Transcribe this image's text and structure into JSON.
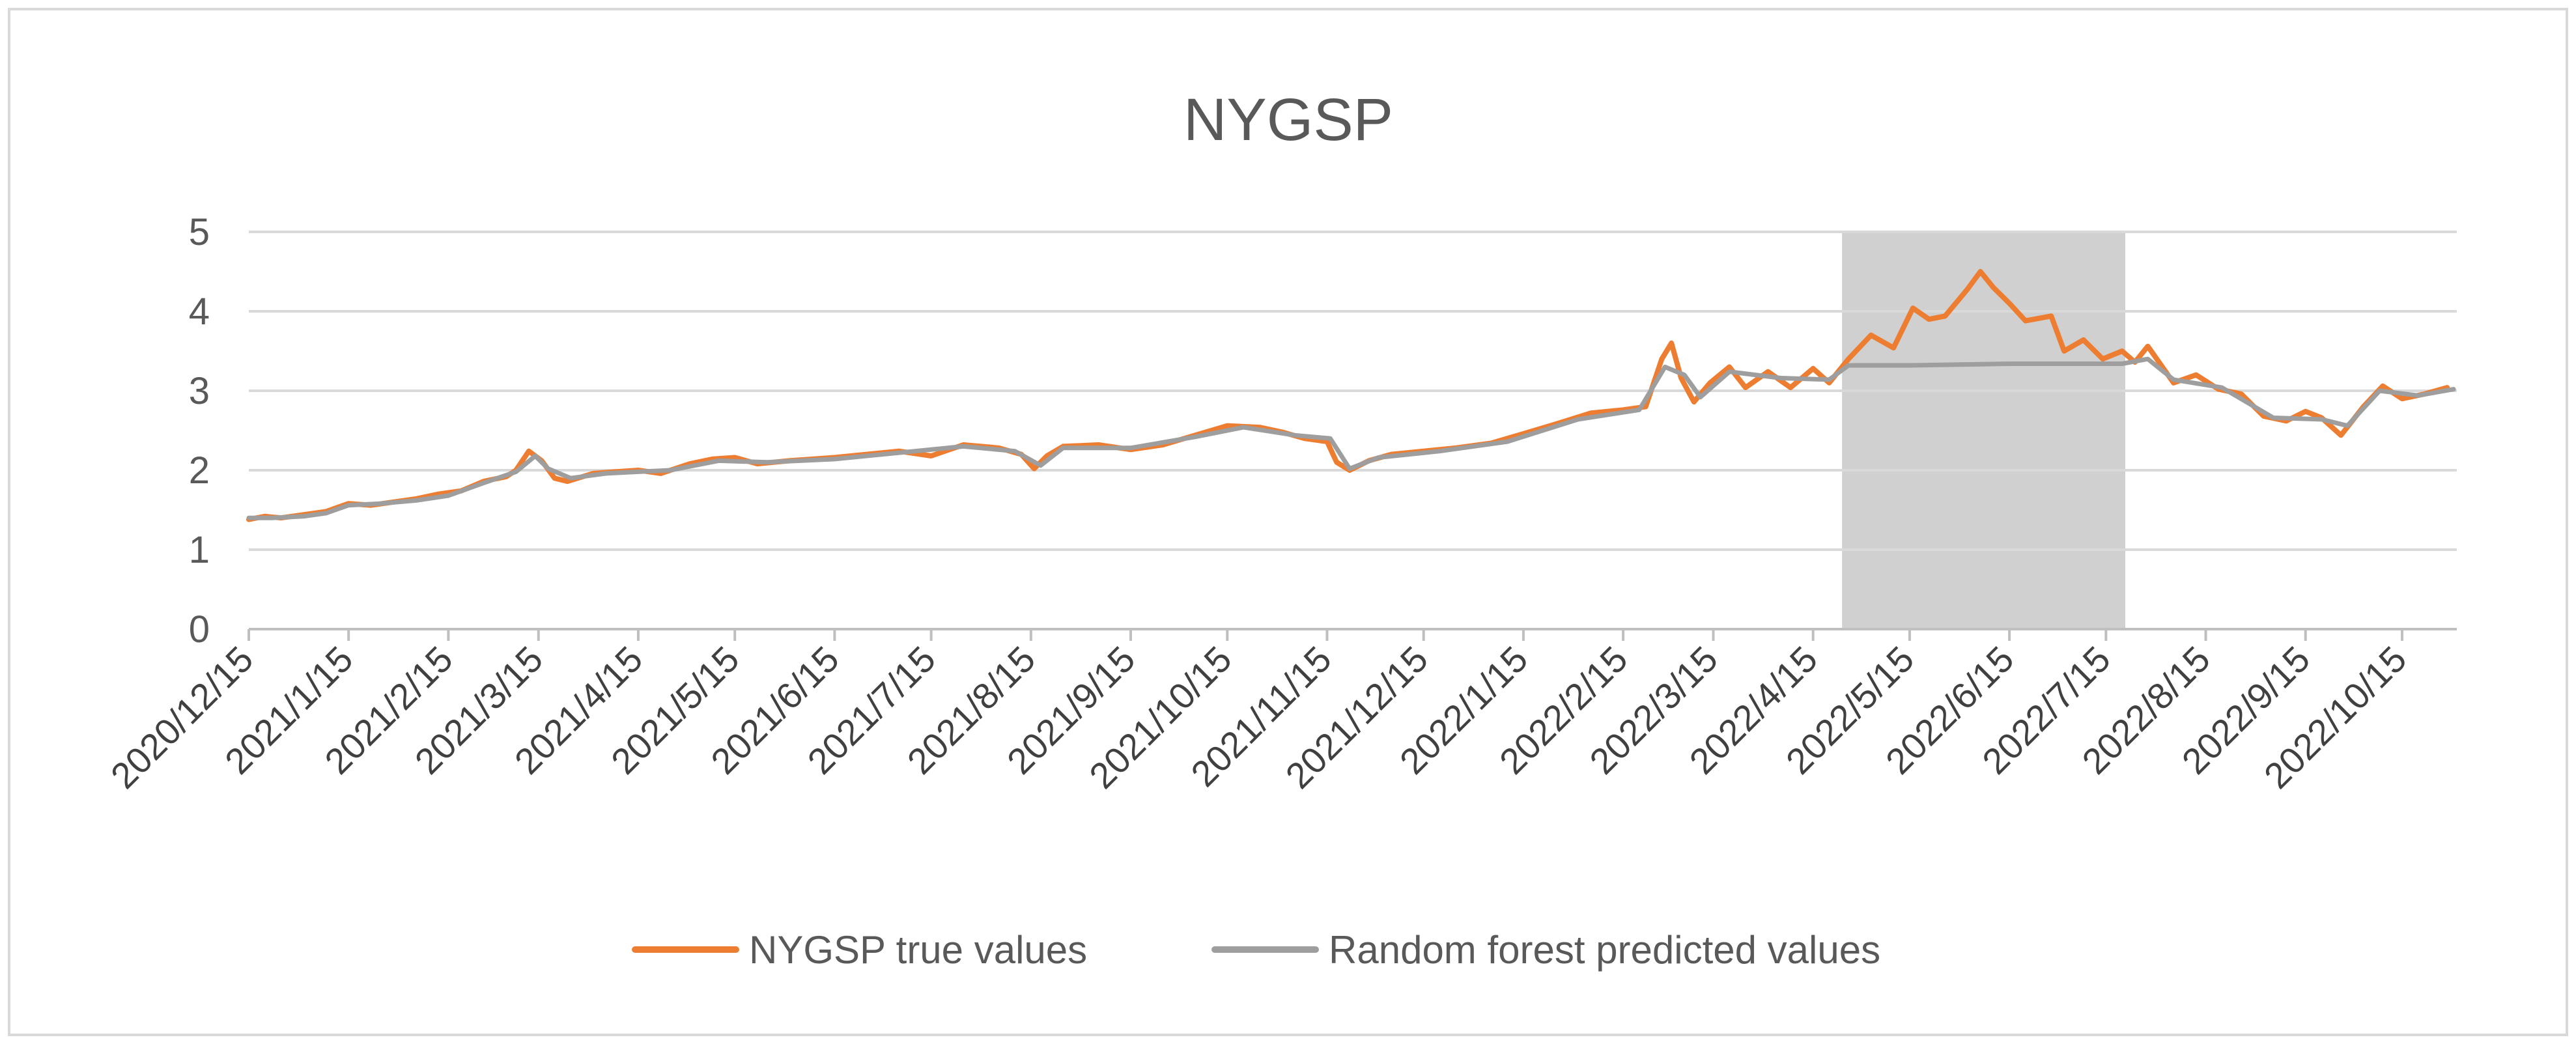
{
  "chart_data": {
    "type": "line",
    "title": "NYGSP",
    "xlabel": "",
    "ylabel": "",
    "x_axis_type": "date",
    "xlim": [
      "2020-12-15",
      "2022-11-01"
    ],
    "ylim": [
      0,
      5
    ],
    "y_ticks": [
      0,
      1,
      2,
      3,
      4,
      5
    ],
    "x_tick_labels": [
      "2020/12/15",
      "2021/1/15",
      "2021/2/15",
      "2021/3/15",
      "2021/4/15",
      "2021/5/15",
      "2021/6/15",
      "2021/7/15",
      "2021/8/15",
      "2021/9/15",
      "2021/10/15",
      "2021/11/15",
      "2021/12/15",
      "2022/1/15",
      "2022/2/15",
      "2022/3/15",
      "2022/4/15",
      "2022/5/15",
      "2022/6/15",
      "2022/7/15",
      "2022/8/15",
      "2022/9/15",
      "2022/10/15"
    ],
    "grid": "horizontal",
    "legend_position": "bottom",
    "shaded_region": {
      "x_start": "2022-04-24",
      "x_end": "2022-07-21",
      "color": "#d0d0d0"
    },
    "series": [
      {
        "name": "NYGSP true values",
        "color": "#ed7d31",
        "points": [
          [
            "2020-12-15",
            1.38
          ],
          [
            "2020-12-20",
            1.42
          ],
          [
            "2020-12-25",
            1.4
          ],
          [
            "2021-01-01",
            1.44
          ],
          [
            "2021-01-08",
            1.48
          ],
          [
            "2021-01-15",
            1.58
          ],
          [
            "2021-01-22",
            1.56
          ],
          [
            "2021-01-29",
            1.6
          ],
          [
            "2021-02-05",
            1.64
          ],
          [
            "2021-02-12",
            1.7
          ],
          [
            "2021-02-19",
            1.74
          ],
          [
            "2021-02-26",
            1.86
          ],
          [
            "2021-03-05",
            1.92
          ],
          [
            "2021-03-08",
            2.0
          ],
          [
            "2021-03-12",
            2.24
          ],
          [
            "2021-03-16",
            2.12
          ],
          [
            "2021-03-20",
            1.9
          ],
          [
            "2021-03-24",
            1.86
          ],
          [
            "2021-04-01",
            1.96
          ],
          [
            "2021-04-08",
            1.98
          ],
          [
            "2021-04-15",
            2.0
          ],
          [
            "2021-04-22",
            1.96
          ],
          [
            "2021-05-01",
            2.08
          ],
          [
            "2021-05-08",
            2.14
          ],
          [
            "2021-05-15",
            2.16
          ],
          [
            "2021-05-22",
            2.08
          ],
          [
            "2021-06-01",
            2.12
          ],
          [
            "2021-06-15",
            2.16
          ],
          [
            "2021-06-25",
            2.2
          ],
          [
            "2021-07-05",
            2.24
          ],
          [
            "2021-07-15",
            2.18
          ],
          [
            "2021-07-25",
            2.32
          ],
          [
            "2021-08-05",
            2.28
          ],
          [
            "2021-08-12",
            2.2
          ],
          [
            "2021-08-16",
            2.02
          ],
          [
            "2021-08-20",
            2.18
          ],
          [
            "2021-08-25",
            2.3
          ],
          [
            "2021-09-05",
            2.32
          ],
          [
            "2021-09-15",
            2.26
          ],
          [
            "2021-09-25",
            2.32
          ],
          [
            "2021-10-05",
            2.44
          ],
          [
            "2021-10-15",
            2.56
          ],
          [
            "2021-10-25",
            2.54
          ],
          [
            "2021-11-01",
            2.48
          ],
          [
            "2021-11-08",
            2.4
          ],
          [
            "2021-11-15",
            2.36
          ],
          [
            "2021-11-18",
            2.1
          ],
          [
            "2021-11-22",
            2.0
          ],
          [
            "2021-11-28",
            2.12
          ],
          [
            "2021-12-05",
            2.2
          ],
          [
            "2021-12-15",
            2.24
          ],
          [
            "2021-12-25",
            2.28
          ],
          [
            "2022-01-05",
            2.34
          ],
          [
            "2022-01-15",
            2.46
          ],
          [
            "2022-01-25",
            2.58
          ],
          [
            "2022-02-05",
            2.72
          ],
          [
            "2022-02-15",
            2.76
          ],
          [
            "2022-02-22",
            2.8
          ],
          [
            "2022-02-27",
            3.4
          ],
          [
            "2022-03-02",
            3.6
          ],
          [
            "2022-03-05",
            3.16
          ],
          [
            "2022-03-09",
            2.86
          ],
          [
            "2022-03-14",
            3.1
          ],
          [
            "2022-03-20",
            3.3
          ],
          [
            "2022-03-25",
            3.04
          ],
          [
            "2022-04-01",
            3.24
          ],
          [
            "2022-04-08",
            3.04
          ],
          [
            "2022-04-15",
            3.28
          ],
          [
            "2022-04-20",
            3.1
          ],
          [
            "2022-04-26",
            3.4
          ],
          [
            "2022-05-03",
            3.7
          ],
          [
            "2022-05-10",
            3.54
          ],
          [
            "2022-05-16",
            4.04
          ],
          [
            "2022-05-21",
            3.9
          ],
          [
            "2022-05-26",
            3.94
          ],
          [
            "2022-06-02",
            4.28
          ],
          [
            "2022-06-06",
            4.5
          ],
          [
            "2022-06-10",
            4.3
          ],
          [
            "2022-06-15",
            4.1
          ],
          [
            "2022-06-20",
            3.88
          ],
          [
            "2022-06-28",
            3.94
          ],
          [
            "2022-07-02",
            3.5
          ],
          [
            "2022-07-08",
            3.64
          ],
          [
            "2022-07-14",
            3.4
          ],
          [
            "2022-07-20",
            3.5
          ],
          [
            "2022-07-24",
            3.36
          ],
          [
            "2022-07-28",
            3.56
          ],
          [
            "2022-08-05",
            3.1
          ],
          [
            "2022-08-12",
            3.2
          ],
          [
            "2022-08-19",
            3.02
          ],
          [
            "2022-08-26",
            2.96
          ],
          [
            "2022-09-02",
            2.68
          ],
          [
            "2022-09-09",
            2.62
          ],
          [
            "2022-09-15",
            2.74
          ],
          [
            "2022-09-20",
            2.66
          ],
          [
            "2022-09-26",
            2.44
          ],
          [
            "2022-10-03",
            2.8
          ],
          [
            "2022-10-09",
            3.06
          ],
          [
            "2022-10-15",
            2.9
          ],
          [
            "2022-10-22",
            2.96
          ],
          [
            "2022-10-29",
            3.04
          ]
        ]
      },
      {
        "name": "Random forest predicted values",
        "color": "#9e9e9e",
        "points": [
          [
            "2020-12-15",
            1.4
          ],
          [
            "2020-12-22",
            1.4
          ],
          [
            "2021-01-01",
            1.42
          ],
          [
            "2021-01-08",
            1.46
          ],
          [
            "2021-01-15",
            1.56
          ],
          [
            "2021-01-25",
            1.58
          ],
          [
            "2021-02-05",
            1.62
          ],
          [
            "2021-02-15",
            1.68
          ],
          [
            "2021-02-26",
            1.84
          ],
          [
            "2021-03-08",
            1.98
          ],
          [
            "2021-03-14",
            2.18
          ],
          [
            "2021-03-18",
            2.02
          ],
          [
            "2021-03-25",
            1.9
          ],
          [
            "2021-04-05",
            1.96
          ],
          [
            "2021-04-15",
            1.98
          ],
          [
            "2021-04-25",
            2.0
          ],
          [
            "2021-05-10",
            2.12
          ],
          [
            "2021-05-25",
            2.1
          ],
          [
            "2021-06-15",
            2.14
          ],
          [
            "2021-07-05",
            2.22
          ],
          [
            "2021-07-25",
            2.3
          ],
          [
            "2021-08-10",
            2.24
          ],
          [
            "2021-08-18",
            2.06
          ],
          [
            "2021-08-25",
            2.28
          ],
          [
            "2021-09-15",
            2.28
          ],
          [
            "2021-10-05",
            2.42
          ],
          [
            "2021-10-20",
            2.54
          ],
          [
            "2021-11-05",
            2.44
          ],
          [
            "2021-11-16",
            2.4
          ],
          [
            "2021-11-22",
            2.02
          ],
          [
            "2021-12-01",
            2.16
          ],
          [
            "2021-12-20",
            2.24
          ],
          [
            "2022-01-10",
            2.36
          ],
          [
            "2022-02-01",
            2.64
          ],
          [
            "2022-02-20",
            2.76
          ],
          [
            "2022-02-28",
            3.3
          ],
          [
            "2022-03-06",
            3.2
          ],
          [
            "2022-03-11",
            2.92
          ],
          [
            "2022-03-20",
            3.24
          ],
          [
            "2022-04-05",
            3.16
          ],
          [
            "2022-04-20",
            3.14
          ],
          [
            "2022-04-26",
            3.32
          ],
          [
            "2022-05-15",
            3.32
          ],
          [
            "2022-06-15",
            3.34
          ],
          [
            "2022-07-20",
            3.34
          ],
          [
            "2022-07-28",
            3.4
          ],
          [
            "2022-08-05",
            3.14
          ],
          [
            "2022-08-20",
            3.04
          ],
          [
            "2022-09-05",
            2.66
          ],
          [
            "2022-09-20",
            2.64
          ],
          [
            "2022-09-28",
            2.56
          ],
          [
            "2022-10-08",
            3.0
          ],
          [
            "2022-10-20",
            2.94
          ],
          [
            "2022-10-31",
            3.02
          ]
        ]
      }
    ]
  }
}
